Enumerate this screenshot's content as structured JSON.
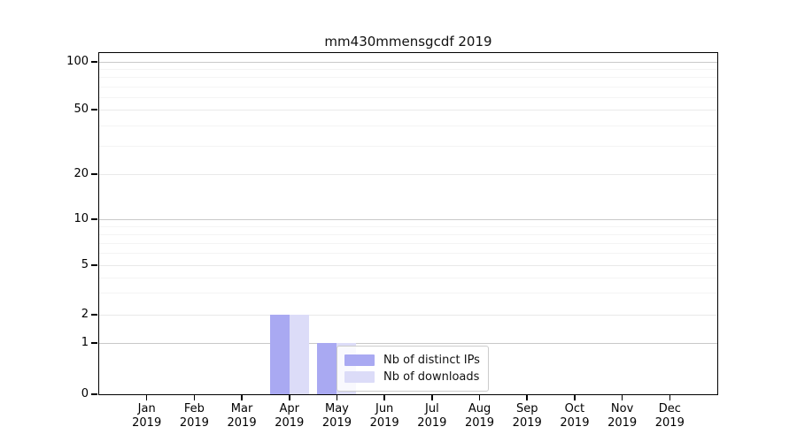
{
  "title": "mm430mmensgcdf 2019",
  "chart_data": {
    "type": "bar",
    "title": "mm430mmensgcdf 2019",
    "categories": [
      "Jan 2019",
      "Feb 2019",
      "Mar 2019",
      "Apr 2019",
      "May 2019",
      "Jun 2019",
      "Jul 2019",
      "Aug 2019",
      "Sep 2019",
      "Oct 2019",
      "Nov 2019",
      "Dec 2019"
    ],
    "month_labels": [
      "Jan",
      "Feb",
      "Mar",
      "Apr",
      "May",
      "Jun",
      "Jul",
      "Aug",
      "Sep",
      "Oct",
      "Nov",
      "Dec"
    ],
    "year_label": "2019",
    "series": [
      {
        "name": "Nb of distinct IPs",
        "color": "#a9a9f2",
        "values": [
          0,
          0,
          0,
          2,
          1,
          0,
          0,
          0,
          0,
          0,
          0,
          0
        ]
      },
      {
        "name": "Nb of downloads",
        "color": "#dcdcf8",
        "values": [
          0,
          0,
          0,
          2,
          1,
          0,
          0,
          0,
          0,
          0,
          0,
          0
        ]
      }
    ],
    "yscale": "symlog",
    "yticks": [
      0,
      1,
      2,
      5,
      10,
      20,
      50,
      100
    ],
    "minor_yticks": [
      3,
      4,
      6,
      7,
      8,
      9,
      30,
      40,
      60,
      70,
      80,
      90
    ],
    "ylim": [
      0,
      115
    ],
    "grid": "both",
    "legend": {
      "labels": [
        "Nb of distinct IPs",
        "Nb of downloads"
      ],
      "position": "lower center"
    }
  },
  "colors": {
    "background": "#ffffff",
    "spine": "#000000",
    "grid_strong": "#c9c9c9",
    "grid_mid": "#e9e9e9",
    "grid_minor": "#f4f4f4",
    "series_dark": "#a9a9f2",
    "series_light": "#dcdcf8",
    "legend_border": "#cccccc"
  }
}
